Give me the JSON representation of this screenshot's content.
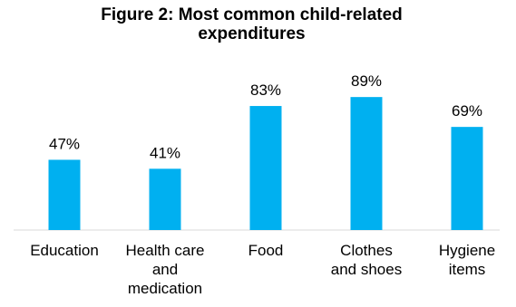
{
  "chart_data": {
    "type": "bar",
    "title": "Figure 2: Most common child-related expenditures",
    "categories": [
      "Education",
      "Health care and medication",
      "Food",
      "Clothes and shoes",
      "Hygiene items"
    ],
    "category_lines": [
      [
        "Education"
      ],
      [
        "Health care",
        "and",
        "medication"
      ],
      [
        "Food"
      ],
      [
        "Clothes",
        "and shoes"
      ],
      [
        "Hygiene",
        "items"
      ]
    ],
    "values": [
      47,
      41,
      83,
      89,
      69
    ],
    "data_labels": [
      "47%",
      "41%",
      "83%",
      "89%",
      "69%"
    ],
    "unit": "%",
    "xlabel": "",
    "ylabel": "",
    "ylim": [
      0,
      100
    ],
    "bar_color": "#00B0F0",
    "grid": false,
    "legend": "none"
  }
}
